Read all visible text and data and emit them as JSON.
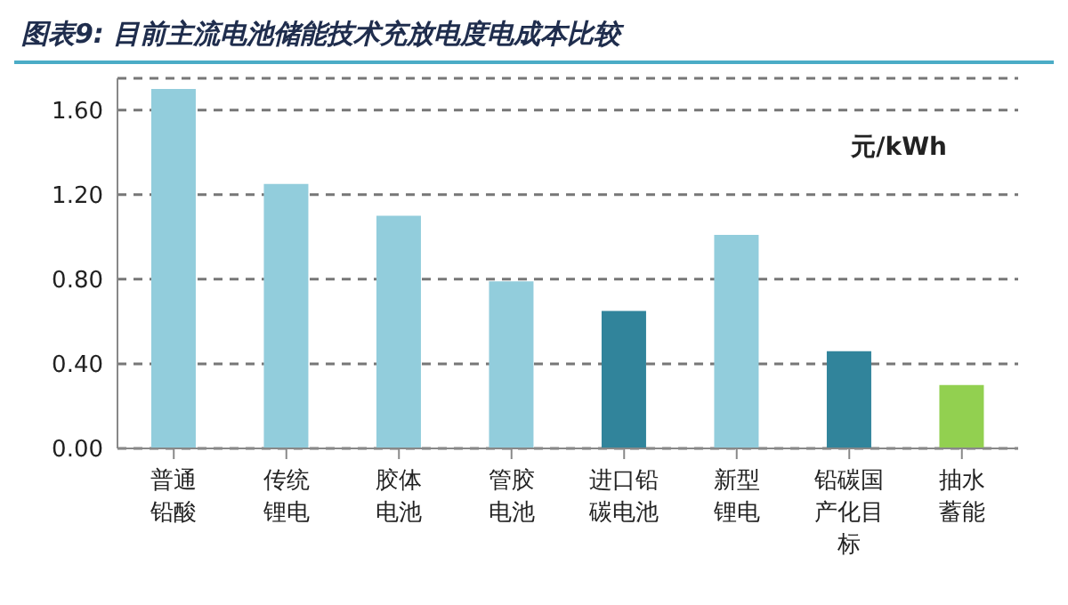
{
  "chart_data": {
    "type": "bar",
    "title": "图表9: 目前主流电池储能技术充放电度电成本比较",
    "categories": [
      "普通铅酸",
      "传统锂电",
      "胶体电池",
      "管胶电池",
      "进口铅碳电池",
      "新型锂电",
      "铅碳国产化目标",
      "抽水蓄能"
    ],
    "values": [
      1.7,
      1.25,
      1.1,
      0.79,
      0.65,
      1.01,
      0.46,
      0.3
    ],
    "colors": [
      "#92cddc",
      "#92cddc",
      "#92cddc",
      "#92cddc",
      "#31849b",
      "#92cddc",
      "#31849b",
      "#92d050"
    ],
    "ylim": [
      0,
      1.75
    ],
    "yticks": [
      {
        "value": 0,
        "label": "0.00"
      },
      {
        "value": 0.4,
        "label": "0.40"
      },
      {
        "value": 0.8,
        "label": "0.80"
      },
      {
        "value": 1.2,
        "label": "1.20"
      },
      {
        "value": 1.6,
        "label": "1.60"
      }
    ],
    "grid": "y",
    "annotations": [
      "元/kWh"
    ]
  }
}
